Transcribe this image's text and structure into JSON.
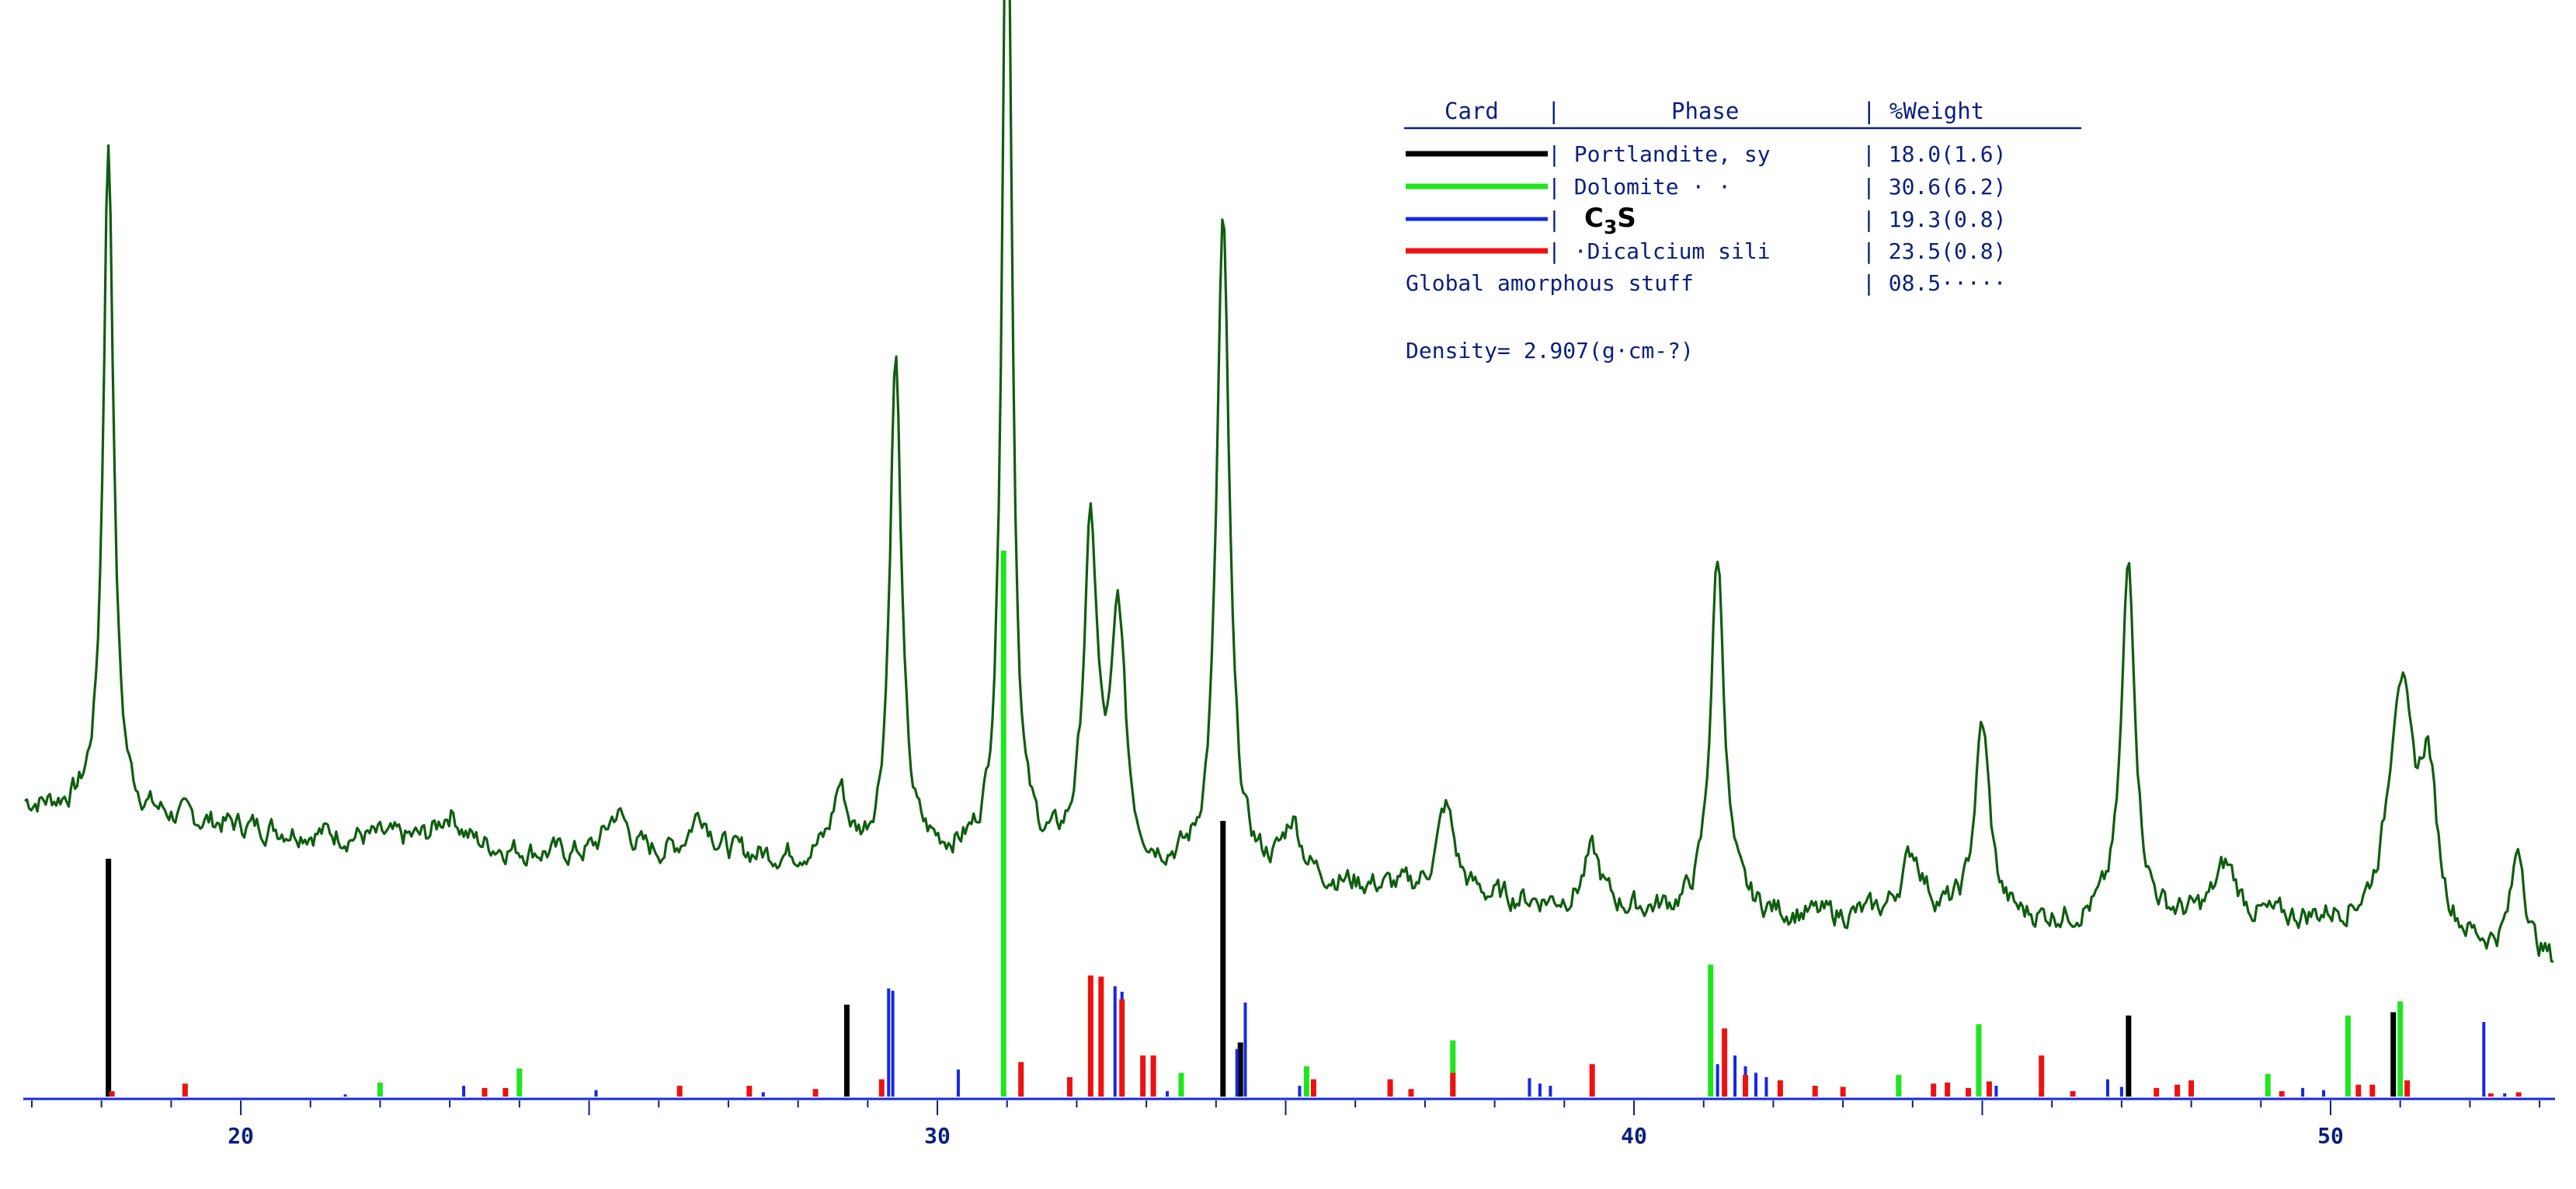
{
  "chart_data": {
    "type": "line",
    "x_range": [
      16.9,
      53.2
    ],
    "y_range": [
      0,
      100
    ],
    "x_ticks": [
      20,
      30,
      40,
      50
    ],
    "x_tick_labels": [
      "20",
      "30",
      "40",
      "50"
    ],
    "xlabel": "",
    "ylabel": "",
    "title": "",
    "grid": false,
    "legend_position": "top-right",
    "colors": {
      "pattern": "#0e5e0e",
      "portlandite": "#000000",
      "dolomite": "#1ee61e",
      "c3s": "#1428e6",
      "dicalcium": "#ee1111",
      "baseline": "#1428e6",
      "text": "#0a2080"
    },
    "legend": {
      "headers": [
        "Card",
        "|",
        "Phase",
        "| %Weight"
      ],
      "rows": [
        {
          "phase": "| Portlandite, sy",
          "weight": "| 18.0(1.6)",
          "color_key": "portlandite"
        },
        {
          "phase": "| Dolomite    · · ",
          "weight": "| 30.6(6.2)",
          "color_key": "dolomite"
        },
        {
          "phase": "|",
          "phase_formula": [
            "C",
            "3",
            "S"
          ],
          "weight": "| 19.3(0.8)",
          "color_key": "c3s"
        },
        {
          "phase": "| ·Dicalcium sili",
          "weight": "| 23.5(0.8)",
          "color_key": "dicalcium"
        }
      ],
      "amorphous_label": "Global amorphous stuff",
      "amorphous_value": "| 08.5·····",
      "density": "Density= 2.907(g·cm-?)"
    },
    "pattern": {
      "name": "observed pattern",
      "baseline_intensity": 25,
      "noise_amplitude": 2.2,
      "background": [
        [
          16.9,
          27
        ],
        [
          20,
          25
        ],
        [
          25,
          22
        ],
        [
          30,
          22
        ],
        [
          35,
          20
        ],
        [
          40,
          17
        ],
        [
          45,
          16
        ],
        [
          50,
          16
        ],
        [
          53.2,
          12
        ]
      ],
      "peaks": [
        {
          "x": 18.1,
          "height": 62,
          "width": 0.09
        },
        {
          "x": 23.0,
          "height": 3,
          "width": 0.2
        },
        {
          "x": 25.4,
          "height": 4,
          "width": 0.2
        },
        {
          "x": 26.6,
          "height": 4,
          "width": 0.2
        },
        {
          "x": 28.6,
          "height": 6,
          "width": 0.12
        },
        {
          "x": 29.4,
          "height": 46,
          "width": 0.1
        },
        {
          "x": 31.0,
          "height": 98,
          "width": 0.085
        },
        {
          "x": 32.2,
          "height": 30,
          "width": 0.12
        },
        {
          "x": 32.6,
          "height": 22,
          "width": 0.12
        },
        {
          "x": 34.1,
          "height": 60,
          "width": 0.11
        },
        {
          "x": 35.1,
          "height": 5,
          "width": 0.15
        },
        {
          "x": 37.3,
          "height": 8,
          "width": 0.15
        },
        {
          "x": 39.4,
          "height": 5,
          "width": 0.15
        },
        {
          "x": 41.2,
          "height": 33,
          "width": 0.12
        },
        {
          "x": 44.0,
          "height": 6,
          "width": 0.2
        },
        {
          "x": 45.0,
          "height": 18,
          "width": 0.13
        },
        {
          "x": 47.1,
          "height": 33,
          "width": 0.12
        },
        {
          "x": 48.5,
          "height": 5,
          "width": 0.2
        },
        {
          "x": 51.0,
          "height": 23,
          "width": 0.2
        },
        {
          "x": 51.4,
          "height": 14,
          "width": 0.15
        },
        {
          "x": 52.7,
          "height": 10,
          "width": 0.12
        }
      ]
    },
    "series": [
      {
        "key": "portlandite",
        "sticks": [
          [
            18.1,
            22
          ],
          [
            28.7,
            8.5
          ],
          [
            34.1,
            25.5
          ],
          [
            34.35,
            5
          ],
          [
            47.1,
            7.5
          ],
          [
            50.9,
            7.8
          ]
        ]
      },
      {
        "key": "dolomite",
        "sticks": [
          [
            22.0,
            1.3
          ],
          [
            24.0,
            2.6
          ],
          [
            30.95,
            50.5
          ],
          [
            33.5,
            2.2
          ],
          [
            35.3,
            2.8
          ],
          [
            37.4,
            5.2
          ],
          [
            41.1,
            12.2
          ],
          [
            43.8,
            2.0
          ],
          [
            44.95,
            6.7
          ],
          [
            49.1,
            2.1
          ],
          [
            50.25,
            7.5
          ],
          [
            51.0,
            8.8
          ]
        ]
      },
      {
        "key": "c3s",
        "sticks": [
          [
            21.5,
            0.2
          ],
          [
            23.2,
            1.0
          ],
          [
            25.1,
            0.6
          ],
          [
            27.5,
            0.4
          ],
          [
            29.3,
            10
          ],
          [
            29.36,
            9.8
          ],
          [
            30.3,
            2.5
          ],
          [
            32.2,
            10.9
          ],
          [
            32.55,
            10.2
          ],
          [
            32.65,
            9.7
          ],
          [
            33.3,
            0.5
          ],
          [
            34.3,
            4.4
          ],
          [
            34.42,
            8.7
          ],
          [
            35.2,
            1.0
          ],
          [
            38.5,
            1.7
          ],
          [
            38.65,
            1.2
          ],
          [
            38.8,
            1.0
          ],
          [
            41.2,
            3.0
          ],
          [
            41.45,
            3.8
          ],
          [
            41.6,
            2.8
          ],
          [
            41.75,
            2.2
          ],
          [
            41.9,
            1.8
          ],
          [
            45.2,
            1.0
          ],
          [
            46.8,
            1.6
          ],
          [
            47.0,
            0.9
          ],
          [
            49.6,
            0.8
          ],
          [
            49.9,
            0.6
          ],
          [
            52.2,
            6.9
          ],
          [
            52.5,
            0.3
          ]
        ]
      },
      {
        "key": "dicalcium",
        "sticks": [
          [
            18.15,
            0.5
          ],
          [
            19.2,
            1.2
          ],
          [
            23.5,
            0.8
          ],
          [
            23.8,
            0.8
          ],
          [
            26.3,
            1.0
          ],
          [
            27.3,
            1.0
          ],
          [
            28.25,
            0.7
          ],
          [
            29.2,
            1.6
          ],
          [
            31.2,
            3.2
          ],
          [
            31.9,
            1.8
          ],
          [
            32.2,
            11.2
          ],
          [
            32.35,
            11.1
          ],
          [
            32.65,
            9.0
          ],
          [
            32.95,
            3.8
          ],
          [
            33.1,
            3.8
          ],
          [
            35.4,
            1.6
          ],
          [
            36.5,
            1.6
          ],
          [
            36.8,
            0.7
          ],
          [
            37.4,
            2.2
          ],
          [
            39.4,
            3.0
          ],
          [
            41.3,
            6.3
          ],
          [
            41.6,
            2.0
          ],
          [
            42.1,
            1.5
          ],
          [
            42.6,
            1.0
          ],
          [
            43.0,
            0.9
          ],
          [
            44.3,
            1.2
          ],
          [
            44.5,
            1.3
          ],
          [
            44.8,
            0.8
          ],
          [
            45.1,
            1.4
          ],
          [
            45.85,
            3.8
          ],
          [
            46.3,
            0.5
          ],
          [
            47.5,
            0.8
          ],
          [
            47.8,
            1.1
          ],
          [
            48.0,
            1.5
          ],
          [
            49.3,
            0.5
          ],
          [
            50.4,
            1.1
          ],
          [
            50.6,
            1.1
          ],
          [
            51.1,
            1.5
          ],
          [
            52.3,
            0.3
          ],
          [
            52.7,
            0.4
          ]
        ]
      }
    ]
  }
}
